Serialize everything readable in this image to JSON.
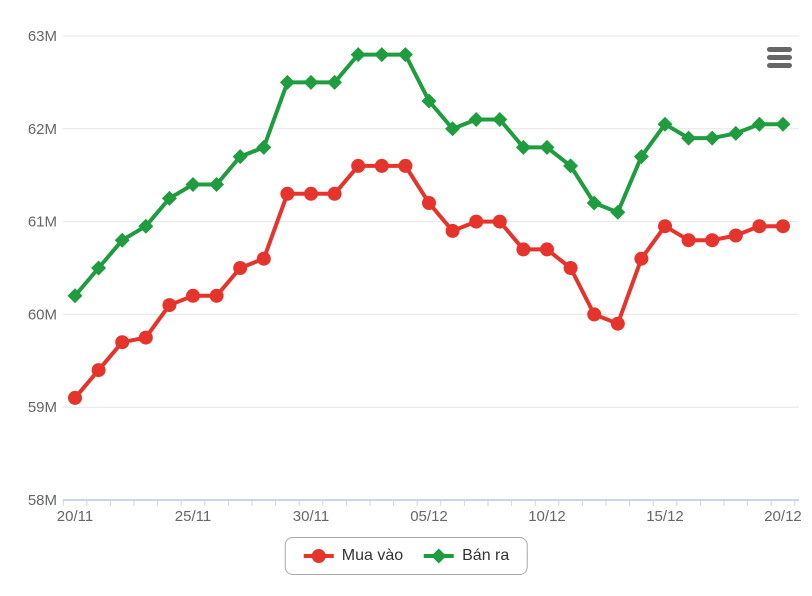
{
  "chart": {
    "menu": {
      "icon": "hamburger-menu-icon",
      "color": "#666666"
    },
    "legend": {
      "border_color": "#a8a8a8",
      "text_color": "#333333",
      "items": [
        {
          "label": "Mua vào",
          "color": "#e4342b",
          "marker": "circle"
        },
        {
          "label": "Bán ra",
          "color": "#1f9c3e",
          "marker": "diamond"
        }
      ]
    }
  },
  "chart_data": {
    "type": "line",
    "title": "",
    "xlabel": "",
    "ylabel": "",
    "unit": "M",
    "categories": [
      "20/11",
      "21/11",
      "22/11",
      "23/11",
      "24/11",
      "25/11",
      "26/11",
      "27/11",
      "28/11",
      "29/11",
      "30/11",
      "01/12",
      "02/12",
      "03/12",
      "04/12",
      "05/12",
      "06/12",
      "07/12",
      "08/12",
      "09/12",
      "10/12",
      "11/12",
      "12/12",
      "13/12",
      "14/12",
      "15/12",
      "16/12",
      "17/12",
      "18/12",
      "19/12",
      "20/12"
    ],
    "x_tick_labels_shown": [
      "20/11",
      "25/11",
      "30/11",
      "05/12",
      "10/12",
      "15/12",
      "20/12"
    ],
    "x_major_tick_every": 5,
    "series": [
      {
        "name": "Mua vào",
        "color": "#e4342b",
        "marker": "circle",
        "values": [
          59.1,
          59.4,
          59.7,
          59.75,
          60.1,
          60.2,
          60.2,
          60.5,
          60.6,
          61.3,
          61.3,
          61.3,
          61.6,
          61.6,
          61.6,
          61.2,
          60.9,
          61.0,
          61.0,
          60.7,
          60.7,
          60.5,
          60.0,
          59.9,
          60.6,
          60.95,
          60.8,
          60.8,
          60.85,
          60.95,
          60.95
        ]
      },
      {
        "name": "Bán ra",
        "color": "#1f9c3e",
        "marker": "diamond",
        "values": [
          60.2,
          60.5,
          60.8,
          60.95,
          61.25,
          61.4,
          61.4,
          61.7,
          61.8,
          62.5,
          62.5,
          62.5,
          62.8,
          62.8,
          62.8,
          62.3,
          62.0,
          62.1,
          62.1,
          61.8,
          61.8,
          61.6,
          61.2,
          61.1,
          61.7,
          62.05,
          61.9,
          61.9,
          61.95,
          62.05,
          62.05
        ]
      }
    ],
    "ylim": [
      58,
      63
    ],
    "y_tick_labels": [
      "58M",
      "59M",
      "60M",
      "61M",
      "62M",
      "63M"
    ],
    "grid": true,
    "legend_position": "bottom-center",
    "colors": {
      "background": "#ffffff",
      "grid_line": "#e6e6e6",
      "axis_line": "#ccd6eb",
      "tick": "#ccd6eb",
      "axis_label": "#666666"
    }
  }
}
